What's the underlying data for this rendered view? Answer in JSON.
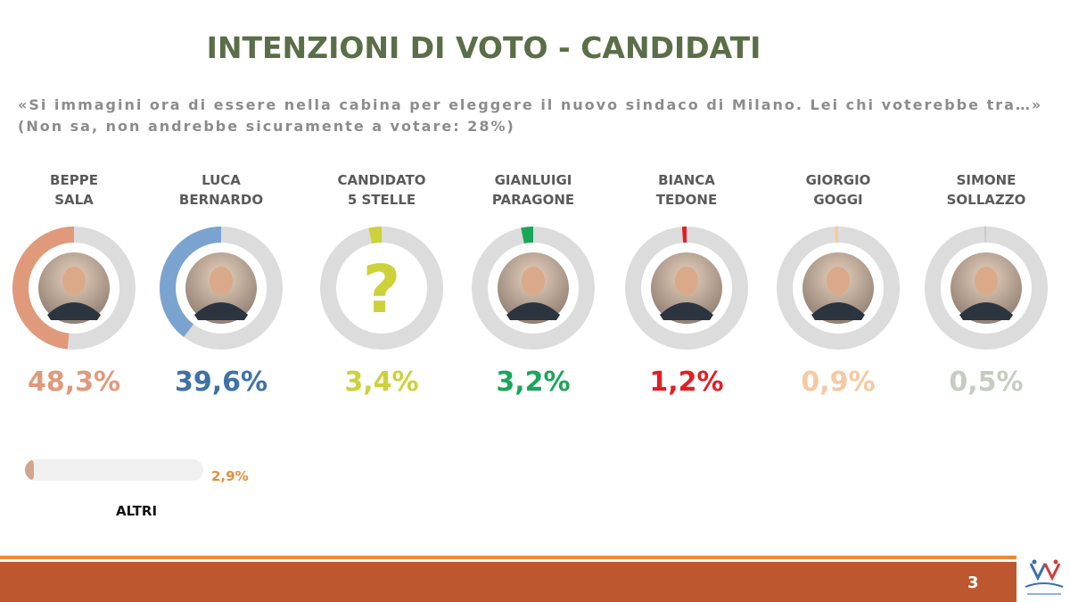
{
  "title": "INTENZIONI DI VOTO - CANDIDATI",
  "question_line1": "«Si immagini ora di essere nella cabina per eleggere il nuovo sindaco di Milano. Lei chi voterebbe tra…»",
  "question_line2": "(Non sa, non andrebbe sicuramente a votare: 28%)",
  "chart_data": {
    "type": "bar",
    "categories": [
      "BEPPE SALA",
      "LUCA BERNARDO",
      "CANDIDATO 5 STELLE",
      "GIANLUIGI PARAGONE",
      "BIANCA TEDONE",
      "GIORGIO GOGGI",
      "SIMONE SOLLAZZO"
    ],
    "name_lines": [
      [
        "BEPPE",
        "SALA"
      ],
      [
        "LUCA",
        "BERNARDO"
      ],
      [
        "CANDIDATO",
        "5 STELLE"
      ],
      [
        "GIANLUIGI",
        "PARAGONE"
      ],
      [
        "BIANCA",
        "TEDONE"
      ],
      [
        "GIORGIO",
        "GOGGI"
      ],
      [
        "SIMONE",
        "SOLLAZZO"
      ]
    ],
    "values": [
      48.3,
      39.6,
      3.4,
      3.2,
      1.2,
      0.9,
      0.5
    ],
    "value_labels": [
      "48,3%",
      "39,6%",
      "3,4%",
      "3,2%",
      "1,2%",
      "0,9%",
      "0,5%"
    ],
    "colors": [
      "#e09a7b",
      "#7ba3cf",
      "#cdd13a",
      "#1aa65a",
      "#e31e24",
      "#f6c9a0",
      "#c5ccc1"
    ],
    "label_colors": [
      "#e09a7b",
      "#3f72a6",
      "#cdd13a",
      "#1aa65a",
      "#e31e24",
      "#f6c9a0",
      "#c5ccc1"
    ],
    "track_color": "#dcdcdc",
    "ring_max": 100,
    "unknown_symbol": "?",
    "unknown_index": 2,
    "others": {
      "label": "ALTRI",
      "value": 2.9,
      "value_label": "2,9%",
      "bar_max": 100
    }
  },
  "page_number": "3"
}
